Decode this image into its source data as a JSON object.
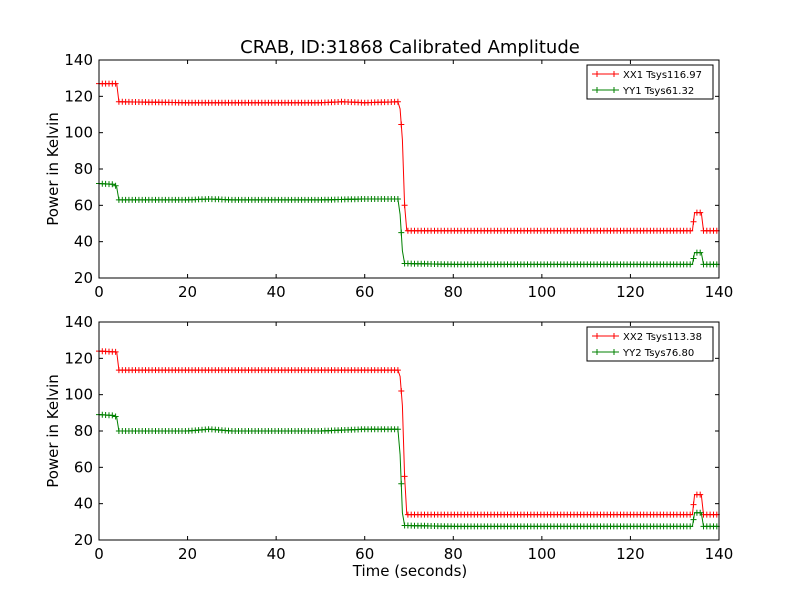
{
  "figure": {
    "title": "CRAB, ID:31868 Calibrated Amplitude",
    "xlabel": "Time (seconds)"
  },
  "chart_data": [
    {
      "type": "line",
      "ylabel": "Power in Kelvin",
      "xlim": [
        0,
        140
      ],
      "ylim": [
        20,
        140
      ],
      "xticks": [
        0,
        20,
        40,
        60,
        80,
        100,
        120,
        140
      ],
      "yticks": [
        20,
        40,
        60,
        80,
        100,
        120,
        140
      ],
      "legend_position": "top-right",
      "grid": false,
      "series": [
        {
          "name": "XX1 Tsys116.97",
          "color": "#ff0000",
          "marker": "plus",
          "points": [
            [
              0,
              127
            ],
            [
              4,
              127
            ],
            [
              4.5,
              117
            ],
            [
              20,
              116.5
            ],
            [
              30,
              116.5
            ],
            [
              50,
              116.5
            ],
            [
              55,
              117
            ],
            [
              60,
              116.5
            ],
            [
              67.5,
              117
            ],
            [
              68,
              113
            ],
            [
              68.5,
              96
            ],
            [
              69,
              60
            ],
            [
              69.5,
              46
            ],
            [
              80,
              46
            ],
            [
              100,
              46
            ],
            [
              120,
              46
            ],
            [
              134,
              46
            ],
            [
              134.5,
              56
            ],
            [
              136,
              56
            ],
            [
              136.5,
              46
            ],
            [
              140,
              46
            ]
          ]
        },
        {
          "name": "YY1 Tsys61.32",
          "color": "#008000",
          "marker": "plus",
          "points": [
            [
              0,
              72
            ],
            [
              3.5,
              71.5
            ],
            [
              4,
              70
            ],
            [
              4.5,
              63
            ],
            [
              10,
              63
            ],
            [
              20,
              63
            ],
            [
              25,
              63.5
            ],
            [
              30,
              63
            ],
            [
              40,
              63
            ],
            [
              50,
              63
            ],
            [
              60,
              63.5
            ],
            [
              67.5,
              63.5
            ],
            [
              68,
              55
            ],
            [
              68.5,
              35
            ],
            [
              69,
              28
            ],
            [
              80,
              27.5
            ],
            [
              100,
              27.5
            ],
            [
              120,
              27.5
            ],
            [
              134,
              27.5
            ],
            [
              134.5,
              34
            ],
            [
              136,
              34
            ],
            [
              136.5,
              27.5
            ],
            [
              140,
              27.5
            ]
          ]
        }
      ]
    },
    {
      "type": "line",
      "ylabel": "Power in Kelvin",
      "xlabel": "Time (seconds)",
      "xlim": [
        0,
        140
      ],
      "ylim": [
        20,
        140
      ],
      "xticks": [
        0,
        20,
        40,
        60,
        80,
        100,
        120,
        140
      ],
      "yticks": [
        20,
        40,
        60,
        80,
        100,
        120,
        140
      ],
      "legend_position": "top-right",
      "grid": false,
      "series": [
        {
          "name": "XX2 Tsys113.38",
          "color": "#ff0000",
          "marker": "plus",
          "points": [
            [
              0,
              124
            ],
            [
              4,
              123.5
            ],
            [
              4.5,
              113.5
            ],
            [
              20,
              113.5
            ],
            [
              40,
              113.5
            ],
            [
              60,
              113.5
            ],
            [
              67.5,
              113.5
            ],
            [
              68,
              110
            ],
            [
              68.5,
              94
            ],
            [
              69,
              55
            ],
            [
              69.5,
              34
            ],
            [
              80,
              34
            ],
            [
              100,
              34
            ],
            [
              120,
              34
            ],
            [
              134,
              34
            ],
            [
              134.5,
              45
            ],
            [
              136,
              45
            ],
            [
              136.5,
              34
            ],
            [
              140,
              34
            ]
          ]
        },
        {
          "name": "YY2 Tsys76.80",
          "color": "#008000",
          "marker": "plus",
          "points": [
            [
              0,
              89
            ],
            [
              3.5,
              88.5
            ],
            [
              4,
              87.5
            ],
            [
              4.5,
              80
            ],
            [
              10,
              80
            ],
            [
              20,
              80
            ],
            [
              25,
              81
            ],
            [
              30,
              80
            ],
            [
              40,
              80
            ],
            [
              50,
              80
            ],
            [
              55,
              80.5
            ],
            [
              60,
              81
            ],
            [
              67.5,
              81
            ],
            [
              68,
              67
            ],
            [
              68.5,
              35
            ],
            [
              69,
              28
            ],
            [
              80,
              27.5
            ],
            [
              100,
              27.5
            ],
            [
              120,
              27.5
            ],
            [
              134,
              27.5
            ],
            [
              134.5,
              35
            ],
            [
              136,
              35
            ],
            [
              136.5,
              27.5
            ],
            [
              140,
              27.5
            ]
          ]
        }
      ]
    }
  ]
}
